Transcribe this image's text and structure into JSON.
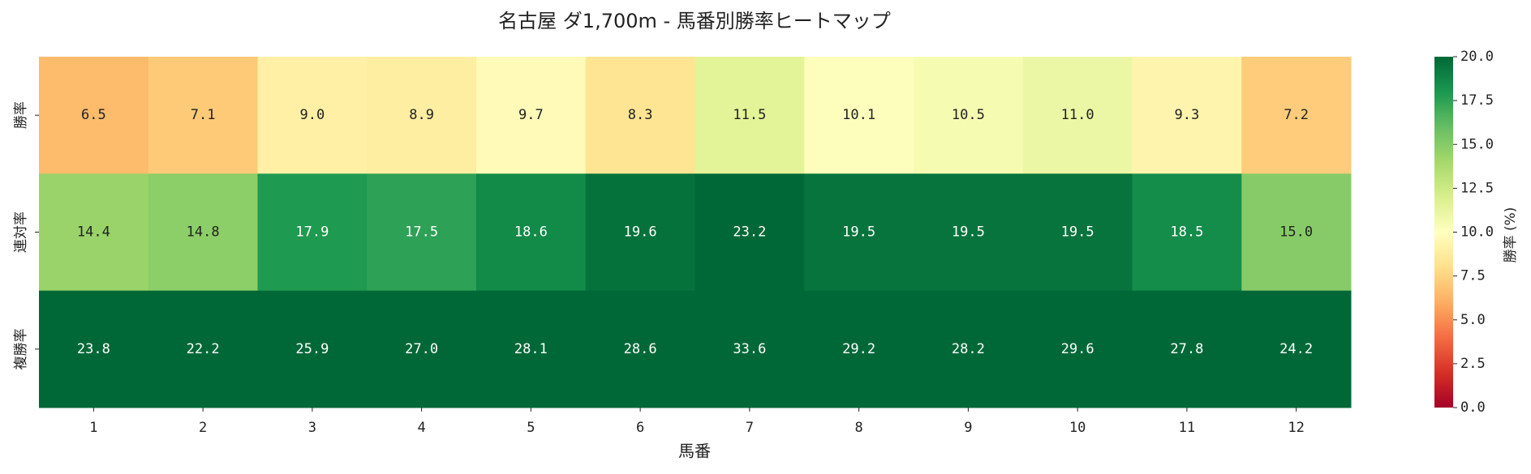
{
  "chart_data": {
    "type": "heatmap",
    "title": "名古屋 ダ1,700m - 馬番別勝率ヒートマップ",
    "xlabel": "馬番",
    "categories": [
      "1",
      "2",
      "3",
      "4",
      "5",
      "6",
      "7",
      "8",
      "9",
      "10",
      "11",
      "12"
    ],
    "rows": [
      "勝率",
      "連対率",
      "複勝率"
    ],
    "values": [
      [
        6.5,
        7.1,
        9.0,
        8.9,
        9.7,
        8.3,
        11.5,
        10.1,
        10.5,
        11.0,
        9.3,
        7.2
      ],
      [
        14.4,
        14.8,
        17.9,
        17.5,
        18.6,
        19.6,
        23.2,
        19.5,
        19.5,
        19.5,
        18.5,
        15.0
      ],
      [
        23.8,
        22.2,
        25.9,
        27.0,
        28.1,
        28.6,
        33.6,
        29.2,
        28.2,
        29.6,
        27.8,
        24.2
      ]
    ],
    "value_labels": [
      [
        "6.5",
        "7.1",
        "9.0",
        "8.9",
        "9.7",
        "8.3",
        "11.5",
        "10.1",
        "10.5",
        "11.0",
        "9.3",
        "7.2"
      ],
      [
        "14.4",
        "14.8",
        "17.9",
        "17.5",
        "18.6",
        "19.6",
        "23.2",
        "19.5",
        "19.5",
        "19.5",
        "18.5",
        "15.0"
      ],
      [
        "23.8",
        "22.2",
        "25.9",
        "27.0",
        "28.1",
        "28.6",
        "33.6",
        "29.2",
        "28.2",
        "29.6",
        "27.8",
        "24.2"
      ]
    ],
    "colors": [
      "#a50026",
      "#d73027",
      "#f46d43",
      "#fdae61",
      "#fee08b",
      "#ffffbf",
      "#d9ef8b",
      "#a6d96a",
      "#66bd63",
      "#1a9850",
      "#006837"
    ],
    "colorbar_label": "勝率 (%)",
    "clim": [
      0,
      20
    ],
    "cticks": [
      {
        "value": 0,
        "label": "0.0"
      },
      {
        "value": 2.5,
        "label": "2.5"
      },
      {
        "value": 5,
        "label": "5.0"
      },
      {
        "value": 7.5,
        "label": "7.5"
      },
      {
        "value": 10,
        "label": "10.0"
      },
      {
        "value": 12.5,
        "label": "12.5"
      },
      {
        "value": 15,
        "label": "15.0"
      },
      {
        "value": 17.5,
        "label": "17.5"
      },
      {
        "value": 20,
        "label": "20.0"
      }
    ]
  }
}
